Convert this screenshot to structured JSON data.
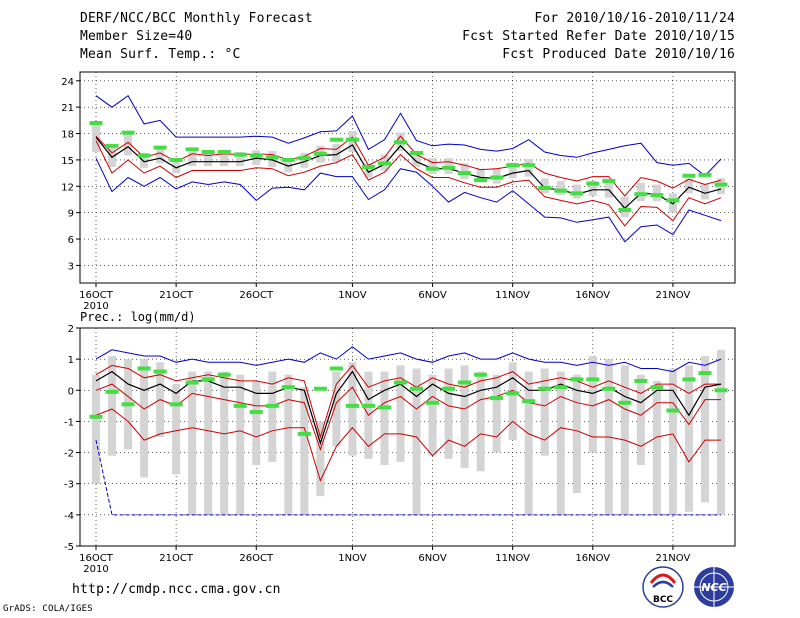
{
  "header": {
    "title": "DERF/NCC/BCC Monthly Forecast",
    "member_size": "Member Size=40",
    "variable": "Mean Surf. Temp.: °C",
    "period": "For 2010/10/16-2010/11/24",
    "started": "Fcst Started Refer Date 2010/10/15",
    "produced": "Fcst Produced Date 2010/10/16"
  },
  "footer": {
    "url": "http://cmdp.ncc.cma.gov.cn",
    "credit": "GrADS: COLA/IGES",
    "logo_left": "BCC",
    "logo_right": "NCC"
  },
  "colors": {
    "max_line": "#0000cc",
    "pct_line": "#cc0000",
    "mean_line": "#000000",
    "box": "#d4d4d4",
    "obs_mark": "#44dd44"
  },
  "chart_data": [
    {
      "type": "line",
      "title": "Mean Surf. Temp.: °C",
      "x_labels": [
        "16OCT",
        "21OCT",
        "26OCT",
        "1NOV",
        "6NOV",
        "11NOV",
        "16NOV",
        "21NOV"
      ],
      "x_label_index": [
        0,
        5,
        10,
        16,
        21,
        26,
        31,
        36
      ],
      "year_label": "2010",
      "n_days": 40,
      "ylim": [
        1,
        25
      ],
      "yticks": [
        3,
        6,
        9,
        12,
        15,
        18,
        21,
        24
      ],
      "series": [
        {
          "name": "max",
          "values": [
            22.3,
            21,
            22.3,
            19.1,
            19.5,
            17.6,
            17.6,
            17.6,
            17.6,
            17.6,
            17.7,
            17.6,
            16.9,
            17.5,
            18.2,
            18.3,
            20,
            16.2,
            17.3,
            20.3,
            17.2,
            16.6,
            16.8,
            16.7,
            16.2,
            16,
            16.3,
            17.3,
            15.9,
            15.5,
            15.3,
            15.8,
            16.2,
            16.6,
            16.9,
            14.7,
            14.4,
            14.6,
            13.2,
            15.1
          ]
        },
        {
          "name": "upper",
          "values": [
            17.7,
            15.8,
            17,
            15.3,
            15.8,
            14.8,
            15.7,
            15.5,
            15.7,
            15.6,
            15.7,
            15.6,
            15,
            15.4,
            16.3,
            16.2,
            17.6,
            14.4,
            15.3,
            17.7,
            15.6,
            14.7,
            14.8,
            14.4,
            13.9,
            14,
            14.3,
            14.6,
            13.5,
            13,
            12.6,
            13.1,
            13.1,
            10.9,
            13,
            12.6,
            11.8,
            12.8,
            12.2,
            12.7
          ]
        },
        {
          "name": "mean",
          "values": [
            17.6,
            15.3,
            16.5,
            14.8,
            15.2,
            14.1,
            14.8,
            14.8,
            14.8,
            14.8,
            15.2,
            15,
            14.3,
            14.8,
            15.5,
            15.6,
            16.7,
            13.6,
            14.5,
            16.6,
            14.8,
            14,
            14,
            13.5,
            13,
            12.9,
            13.5,
            13.8,
            11.8,
            11.6,
            11.1,
            11.6,
            11.6,
            9.5,
            11.2,
            11.1,
            10,
            11.9,
            11.2,
            11.7
          ]
        },
        {
          "name": "lower",
          "values": [
            17.2,
            13.5,
            15,
            13.5,
            14.3,
            13,
            13.8,
            13.8,
            13.8,
            13.8,
            14.1,
            14,
            13.2,
            13.6,
            14.3,
            14.7,
            15.6,
            12.7,
            13.6,
            15.6,
            14,
            13,
            13,
            12.4,
            11.9,
            11.9,
            12.5,
            12.7,
            10.8,
            10.4,
            10,
            10.4,
            9.9,
            7.5,
            9.7,
            9.6,
            8.1,
            10.7,
            10,
            10.7
          ]
        },
        {
          "name": "min",
          "values": [
            15.2,
            11.4,
            13,
            12,
            13,
            11.7,
            12.5,
            12.2,
            12.5,
            12.2,
            10.4,
            11.8,
            11.9,
            11.6,
            13.5,
            13.1,
            13.1,
            10.5,
            11.6,
            14,
            13.6,
            12,
            10.2,
            11.3,
            10.7,
            10.2,
            11.5,
            10,
            8.5,
            8.4,
            7.9,
            8.2,
            8.5,
            5.7,
            7.4,
            7.6,
            6.5,
            9.3,
            8.7,
            8.1
          ]
        }
      ],
      "boxes": {
        "low": [
          15.9,
          14.2,
          15.5,
          14.1,
          14.6,
          13.5,
          14.3,
          14.3,
          14.3,
          14.3,
          14.4,
          14.2,
          13.6,
          14.1,
          14.7,
          14.8,
          15.9,
          13,
          13.8,
          16,
          14.2,
          13.4,
          13.4,
          12.8,
          12.5,
          12.3,
          12.9,
          13.1,
          11.2,
          11,
          10.6,
          10.9,
          10.7,
          8.5,
          10.3,
          10.3,
          9,
          11.2,
          10.5,
          11.1
        ],
        "high": [
          19.4,
          16.4,
          18.3,
          15.8,
          16.4,
          15,
          15.9,
          15.9,
          15.9,
          15.9,
          16.1,
          16,
          15.2,
          15.8,
          16.6,
          16.8,
          18.3,
          14.6,
          15.6,
          18.1,
          15.8,
          15.2,
          15.2,
          14.6,
          14,
          14.1,
          14.7,
          15.1,
          12.9,
          12.6,
          12.2,
          12.6,
          12.6,
          10.8,
          12.4,
          12.2,
          11.2,
          12.9,
          12.3,
          12.9
        ]
      },
      "obs": [
        19.2,
        16.6,
        18.1,
        15.5,
        16.4,
        15,
        16.2,
        15.9,
        15.9,
        15.6,
        15.5,
        15.3,
        15,
        15.2,
        15.7,
        17.3,
        17.3,
        14.2,
        14.6,
        17,
        15.8,
        14,
        14.1,
        13.5,
        12.7,
        13,
        14.4,
        14.4,
        11.8,
        11.5,
        11.2,
        12.3,
        12.6,
        9.3,
        11.1,
        11,
        10.4,
        13.2,
        13.3,
        12.2
      ]
    },
    {
      "type": "line",
      "title": "Prec.: log(mm/d)",
      "x_labels": [
        "16OCT",
        "21OCT",
        "26OCT",
        "1NOV",
        "6NOV",
        "11NOV",
        "16NOV",
        "21NOV"
      ],
      "x_label_index": [
        0,
        5,
        10,
        16,
        21,
        26,
        31,
        36
      ],
      "year_label": "2010",
      "n_days": 40,
      "ylim": [
        -5,
        2
      ],
      "yticks": [
        -5,
        -4,
        -3,
        -2,
        -1,
        0,
        1,
        2
      ],
      "series": [
        {
          "name": "max",
          "values": [
            1,
            1.3,
            1.2,
            1.1,
            1.1,
            0.9,
            1,
            0.9,
            0.9,
            0.9,
            0.8,
            0.9,
            1,
            0.9,
            1.2,
            1,
            1.4,
            1,
            1.1,
            1.2,
            1,
            0.9,
            1.1,
            1.2,
            1,
            1,
            1.2,
            1,
            0.9,
            0.9,
            0.8,
            0.9,
            0.8,
            0.9,
            0.7,
            0.7,
            0.6,
            0.9,
            0.8,
            1
          ]
        },
        {
          "name": "upper",
          "values": [
            0.5,
            0.8,
            0.7,
            0.4,
            0.5,
            0.3,
            0.4,
            0.5,
            0.4,
            0.3,
            0.3,
            0.2,
            0.4,
            0.3,
            -1.5,
            0.2,
            0.8,
            0.1,
            0.3,
            0.4,
            0.1,
            0.4,
            0.2,
            0.1,
            0.3,
            0.4,
            0.6,
            0.2,
            0.3,
            0.4,
            0.3,
            0.1,
            0.3,
            0.1,
            -0.1,
            0.2,
            0.2,
            -0.1,
            0.2,
            0.2
          ]
        },
        {
          "name": "mean",
          "values": [
            0.3,
            0.6,
            0.2,
            0,
            0.2,
            -0.1,
            0.3,
            0.3,
            0.1,
            0.1,
            -0.1,
            -0.1,
            0.1,
            0,
            -1.7,
            -0.1,
            0.6,
            -0.3,
            0,
            0.2,
            -0.2,
            0.2,
            -0.1,
            -0.2,
            0,
            0.1,
            0.4,
            0,
            0,
            0.2,
            0,
            -0.1,
            0.1,
            -0.2,
            -0.4,
            0,
            0,
            -0.8,
            0.1,
            0.2
          ]
        },
        {
          "name": "lower",
          "values": [
            0,
            0.2,
            -0.2,
            -0.6,
            -0.3,
            -0.5,
            -0.1,
            -0.2,
            -0.3,
            -0.4,
            -0.5,
            -0.5,
            -0.3,
            -0.4,
            -1.9,
            -0.4,
            0.1,
            -0.8,
            -0.4,
            -0.2,
            -0.6,
            -0.2,
            -0.5,
            -0.6,
            -0.3,
            -0.2,
            0,
            -0.4,
            -0.5,
            -0.2,
            -0.4,
            -0.5,
            -0.3,
            -0.6,
            -0.8,
            -0.4,
            -0.4,
            -1.1,
            -0.3,
            -0.3
          ]
        },
        {
          "name": "lower10",
          "values": [
            -0.8,
            -0.6,
            -1,
            -1.6,
            -1.4,
            -1.3,
            -1.2,
            -1.3,
            -1.4,
            -1.3,
            -1.5,
            -1.3,
            -1.2,
            -1.2,
            -2.9,
            -1.8,
            -1.2,
            -1.8,
            -1.4,
            -1.4,
            -1.5,
            -2.1,
            -1.6,
            -1.8,
            -1.4,
            -1.5,
            -1,
            -1.4,
            -1.6,
            -1.2,
            -1.3,
            -1.5,
            -1.5,
            -1.6,
            -1.8,
            -1.5,
            -1.4,
            -2.3,
            -1.6,
            -1.6
          ]
        },
        {
          "name": "min",
          "values": [
            -1.6,
            -4,
            -4,
            -4,
            -4,
            -4,
            -4,
            -4,
            -4,
            -4,
            -4,
            -4,
            -4,
            -4,
            -4,
            -4,
            -4,
            -4,
            -4,
            -4,
            -4,
            -4,
            -4,
            -4,
            -4,
            -4,
            -4,
            -4,
            -4,
            -4,
            -4,
            -4,
            -4,
            -4,
            -4,
            -4,
            -4,
            -4,
            -4,
            -4
          ]
        }
      ],
      "boxes": {
        "low": [
          -3,
          -2.1,
          -1.9,
          -2.8,
          -1.5,
          -2.7,
          -4,
          -4,
          -4,
          -4,
          -2.4,
          -2.3,
          -4,
          -4,
          -3.4,
          -1.8,
          -2.1,
          -2.2,
          -2.4,
          -2.3,
          -4,
          -2.1,
          -2.2,
          -2.5,
          -2.6,
          -2,
          -1.6,
          -4,
          -2.1,
          -4,
          -3.3,
          -2,
          -4,
          -4,
          -2.4,
          -4,
          -4,
          -3.9,
          -3.6,
          -4
        ],
        "high": [
          0.5,
          1.1,
          1,
          1,
          0.9,
          0.2,
          0.6,
          0.6,
          0.6,
          0.5,
          0.3,
          0.6,
          0.5,
          0.1,
          -1,
          0.6,
          0.9,
          0.6,
          0.6,
          0.8,
          0.7,
          0.5,
          0.7,
          0.8,
          0.6,
          0.5,
          0.9,
          0.6,
          0.7,
          0.6,
          0.5,
          1.1,
          1,
          0.8,
          0.5,
          0.3,
          0.7,
          0.8,
          1.1,
          1.3
        ]
      },
      "obs": [
        -0.85,
        -0.05,
        -0.45,
        0.7,
        0.6,
        -0.45,
        0.25,
        0.35,
        0.5,
        -0.5,
        -0.7,
        -0.5,
        0.1,
        -1.4,
        0.05,
        0.7,
        -0.5,
        -0.5,
        -0.55,
        0.25,
        0.05,
        -0.4,
        0.05,
        0.25,
        0.5,
        -0.25,
        -0.1,
        -0.35,
        0.05,
        0.1,
        0.35,
        0.35,
        0.05,
        -0.4,
        0.3,
        0.1,
        -0.65,
        0.35,
        0.55,
        0
      ]
    }
  ]
}
